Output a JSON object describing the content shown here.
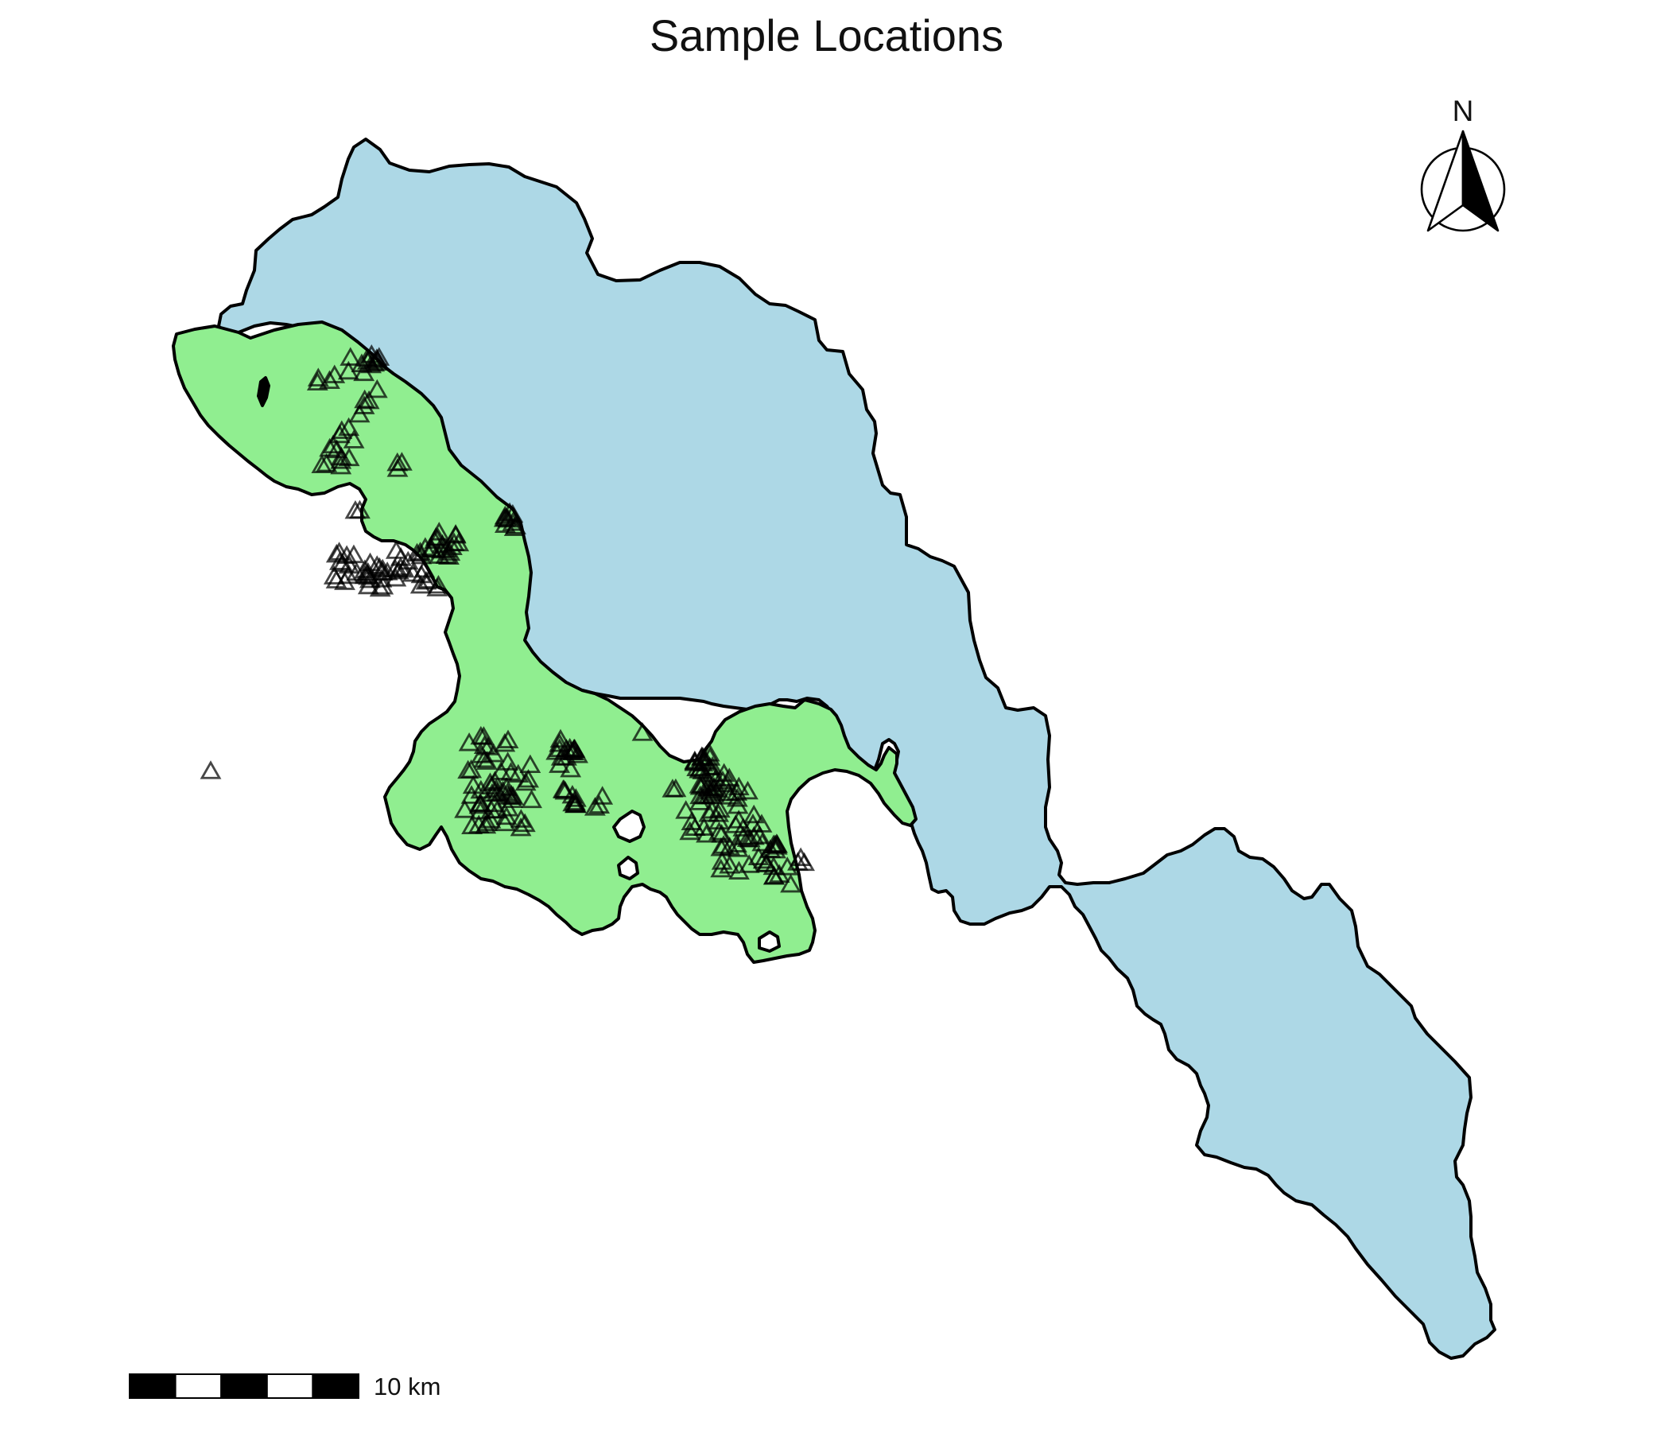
{
  "title": "Sample Locations",
  "north_arrow": {
    "label": "N"
  },
  "scale_bar": {
    "label": "10 km",
    "segments": 5
  },
  "colors": {
    "upper_catchment": "#add8e6",
    "sampled_catchment": "#90ee90",
    "outline": "#000000",
    "sample_marker": "#000000"
  },
  "legend": "none",
  "sample_marker_shape": "open-triangle"
}
